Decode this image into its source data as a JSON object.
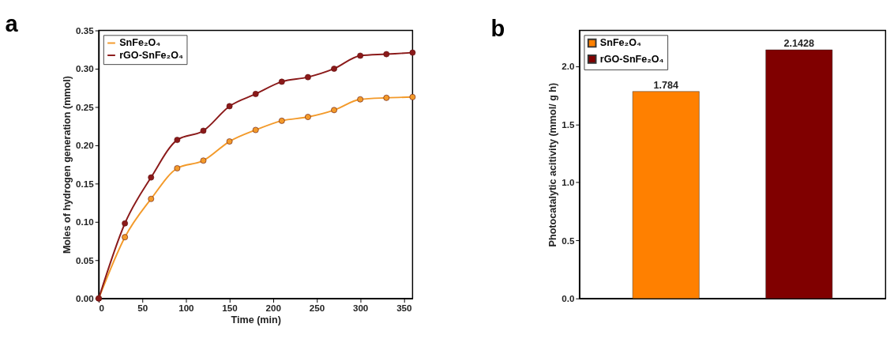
{
  "chart_data": [
    {
      "type": "line",
      "title": "a",
      "xlabel": "Time (min)",
      "ylabel": "Moles of hydrogen generation (mmol)",
      "x": [
        0,
        30,
        60,
        90,
        120,
        150,
        180,
        210,
        240,
        270,
        300,
        330,
        360
      ],
      "series": [
        {
          "name": "SnFe₂O₄",
          "color": "#f39a2a",
          "values": [
            0,
            0.08,
            0.13,
            0.17,
            0.18,
            0.205,
            0.22,
            0.232,
            0.237,
            0.246,
            0.26,
            0.262,
            0.263
          ]
        },
        {
          "name": "rGO-SnFe₂O₄",
          "color": "#8b1a1a",
          "values": [
            0,
            0.098,
            0.158,
            0.207,
            0.219,
            0.251,
            0.267,
            0.283,
            0.289,
            0.3,
            0.317,
            0.319,
            0.321
          ]
        }
      ],
      "xlim": [
        0,
        360
      ],
      "xticks": [
        0,
        50,
        100,
        150,
        200,
        250,
        300,
        350
      ],
      "ylim": [
        0,
        0.35
      ],
      "yticks": [
        {
          "value": 0,
          "label": "0.00"
        },
        0.05,
        {
          "value": 0.1,
          "label": "0.10"
        },
        0.15,
        {
          "value": 0.2,
          "label": "0.20"
        },
        0.25,
        {
          "value": 0.3,
          "label": "0.30"
        },
        0.35
      ],
      "marker": "circle",
      "legend": "top left"
    },
    {
      "type": "bar",
      "title": "b",
      "ylabel": "Photocatalytic acitivity (mmol/ g h)",
      "categories": [
        null,
        null
      ],
      "series": [
        {
          "name": "SnFe₂O₄",
          "color": "#ff8000",
          "values": [
            1.784,
            null
          ]
        },
        {
          "name": "rGO-SnFe₂O₄",
          "color": "#800000",
          "values": [
            null,
            2.1428
          ]
        }
      ],
      "ylim": [
        0,
        2.31
      ],
      "yticks": [
        {
          "value": 0,
          "label": "0.0"
        },
        0.5,
        {
          "value": 1,
          "label": "1.0"
        },
        1.5,
        {
          "value": 2,
          "label": "2.0"
        }
      ],
      "data_labels": true,
      "tick_labels": "y",
      "legend": "top left"
    }
  ]
}
